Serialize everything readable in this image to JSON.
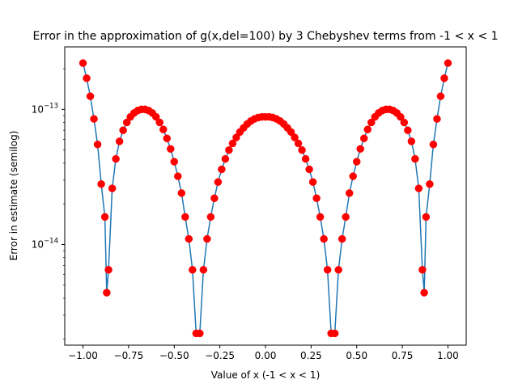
{
  "chart_data": {
    "type": "line",
    "title": "Error in the approximation of g(x,del=100) by 3 Chebyshev terms from -1 < x < 1",
    "xlabel": "Value of x (-1 < x < 1)",
    "ylabel": "Error in estimate (semilog)",
    "xlim": [
      -1.1,
      1.1
    ],
    "ylim": [
      1.8e-15,
      2.9e-13
    ],
    "yscale": "log",
    "grid": false,
    "x_ticks": [
      -1.0,
      -0.75,
      -0.5,
      -0.25,
      0.0,
      0.25,
      0.5,
      0.75,
      1.0
    ],
    "x_tick_labels": [
      "−1.00",
      "−0.75",
      "−0.50",
      "−0.25",
      "0.00",
      "0.25",
      "0.50",
      "0.75",
      "1.00"
    ],
    "y_ticks": [
      {
        "value": 1e-14,
        "base": "10",
        "exp": "−14"
      },
      {
        "value": 1e-13,
        "base": "10",
        "exp": "−13"
      }
    ],
    "line_color": "#1f77b4",
    "marker_color": "#ff0000",
    "series": [
      {
        "x": [
          -1.0,
          -0.98,
          -0.96,
          -0.94,
          -0.92,
          -0.9,
          -0.88,
          -0.87,
          -0.86,
          -0.84,
          -0.82,
          -0.8,
          -0.78,
          -0.76,
          -0.74,
          -0.72,
          -0.7,
          -0.68,
          -0.66,
          -0.64,
          -0.62,
          -0.6,
          -0.58,
          -0.56,
          -0.54,
          -0.52,
          -0.5,
          -0.48,
          -0.46,
          -0.44,
          -0.42,
          -0.4,
          -0.38,
          -0.36,
          -0.34,
          -0.32,
          -0.3,
          -0.28,
          -0.26,
          -0.24,
          -0.22,
          -0.2,
          -0.18,
          -0.16,
          -0.14,
          -0.12,
          -0.1,
          -0.08,
          -0.06,
          -0.04,
          -0.02,
          0.0,
          0.02,
          0.04,
          0.06,
          0.08,
          0.1,
          0.12,
          0.14,
          0.16,
          0.18,
          0.2,
          0.22,
          0.24,
          0.26,
          0.28,
          0.3,
          0.32,
          0.34,
          0.36,
          0.38,
          0.4,
          0.42,
          0.44,
          0.46,
          0.48,
          0.5,
          0.52,
          0.54,
          0.56,
          0.58,
          0.6,
          0.62,
          0.64,
          0.66,
          0.68,
          0.7,
          0.72,
          0.74,
          0.76,
          0.78,
          0.8,
          0.82,
          0.84,
          0.86,
          0.87,
          0.88,
          0.9,
          0.92,
          0.94,
          0.96,
          0.98,
          1.0
        ],
        "y": [
          2.2e-13,
          1.7e-13,
          1.25e-13,
          8.5e-14,
          5.5e-14,
          2.8e-14,
          1.6e-14,
          4.4e-15,
          6.5e-15,
          2.6e-14,
          4.3e-14,
          5.8e-14,
          7e-14,
          8e-14,
          8.8e-14,
          9.4e-14,
          9.8e-14,
          1e-13,
          1e-13,
          9.8e-14,
          9.4e-14,
          8.8e-14,
          8e-14,
          7.1e-14,
          6.1e-14,
          5.1e-14,
          4.1e-14,
          3.2e-14,
          2.4e-14,
          1.6e-14,
          1.1e-14,
          6.5e-15,
          2.2e-15,
          2.2e-15,
          6.5e-15,
          1.1e-14,
          1.6e-14,
          2.2e-14,
          2.9e-14,
          3.6e-14,
          4.3e-14,
          5e-14,
          5.6e-14,
          6.2e-14,
          6.8e-14,
          7.3e-14,
          7.8e-14,
          8.2e-14,
          8.5e-14,
          8.7e-14,
          8.8e-14,
          8.8e-14,
          8.8e-14,
          8.7e-14,
          8.5e-14,
          8.2e-14,
          7.8e-14,
          7.3e-14,
          6.8e-14,
          6.2e-14,
          5.6e-14,
          5e-14,
          4.3e-14,
          3.6e-14,
          2.9e-14,
          2.2e-14,
          1.6e-14,
          1.1e-14,
          6.5e-15,
          2.2e-15,
          2.2e-15,
          6.5e-15,
          1.1e-14,
          1.6e-14,
          2.4e-14,
          3.2e-14,
          4.1e-14,
          5.1e-14,
          6.1e-14,
          7.1e-14,
          8e-14,
          8.8e-14,
          9.4e-14,
          9.8e-14,
          1e-13,
          1e-13,
          9.8e-14,
          9.4e-14,
          8.8e-14,
          8e-14,
          7e-14,
          5.8e-14,
          4.3e-14,
          2.6e-14,
          6.5e-15,
          4.4e-15,
          1.6e-14,
          2.8e-14,
          5.5e-14,
          8.5e-14,
          1.25e-13,
          1.7e-13,
          2.2e-13
        ]
      }
    ]
  }
}
